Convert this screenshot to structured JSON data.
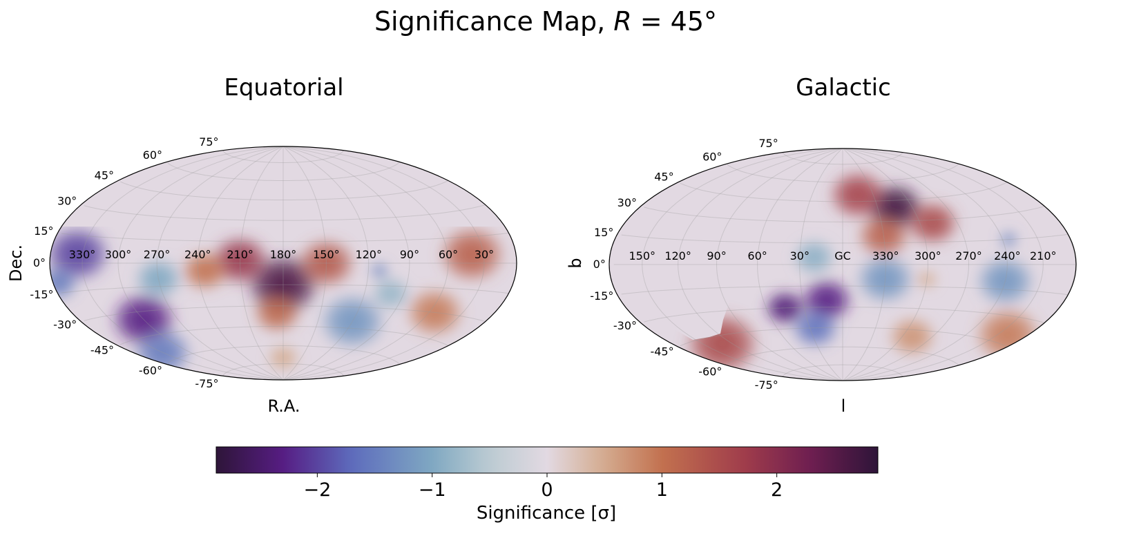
{
  "title_prefix": "Significance Map, ",
  "title_var": "R",
  "title_suffix": " = 45°",
  "chart_data": {
    "type": "heatmap",
    "projection": "hammer",
    "colormap": "twilight_shifted",
    "colorbar": {
      "label": "Significance [σ]",
      "range": [
        -2.88,
        2.88
      ],
      "ticks": [
        -2,
        -1,
        0,
        1,
        2
      ],
      "tick_labels": [
        "−2",
        "−1",
        "0",
        "1",
        "2"
      ],
      "stops": [
        {
          "v": -2.88,
          "c": "#2e1539"
        },
        {
          "v": -2.3,
          "c": "#561d83"
        },
        {
          "v": -1.7,
          "c": "#5d6cbd"
        },
        {
          "v": -1.0,
          "c": "#7fa8c2"
        },
        {
          "v": -0.5,
          "c": "#bccbd2"
        },
        {
          "v": 0,
          "c": "#e2d9e2"
        },
        {
          "v": 0.5,
          "c": "#d4ab8f"
        },
        {
          "v": 1.0,
          "c": "#c2714f"
        },
        {
          "v": 1.7,
          "c": "#a13d4b"
        },
        {
          "v": 2.3,
          "c": "#6d1e50"
        },
        {
          "v": 2.88,
          "c": "#2e1539"
        }
      ]
    },
    "panels": [
      {
        "title": "Equatorial",
        "xlabel": "R.A.",
        "ylabel": "Dec.",
        "center_lon": 180,
        "lon_ticks": [
          330,
          300,
          270,
          240,
          210,
          180,
          150,
          120,
          90,
          60,
          30
        ],
        "lon_tick_labels": [
          "330°",
          "300°",
          "270°",
          "240°",
          "210°",
          "180°",
          "150°",
          "120°",
          "90°",
          "60°",
          "30°"
        ],
        "lat_ticks": [
          75,
          60,
          45,
          30,
          15,
          0,
          -15,
          -30,
          -45,
          -60,
          -75
        ],
        "lat_tick_labels": [
          "75°",
          "60°",
          "45°",
          "30°",
          "15°",
          "0°",
          "-15°",
          "-30°",
          "-45°",
          "-60°",
          "-75°"
        ],
        "masked": "Dec > ~20° (no coverage)",
        "hotspots": [
          {
            "lon": 180,
            "lat": -15,
            "sigma": 2.6,
            "r": 28
          },
          {
            "lon": 210,
            "lat": 2,
            "sigma": 1.8,
            "r": 22
          },
          {
            "lon": 150,
            "lat": 0,
            "sigma": 1.3,
            "r": 22
          },
          {
            "lon": 235,
            "lat": -5,
            "sigma": 1.0,
            "r": 18
          },
          {
            "lon": 185,
            "lat": -35,
            "sigma": 1.1,
            "r": 18
          },
          {
            "lon": 40,
            "lat": 5,
            "sigma": 1.2,
            "r": 25
          },
          {
            "lon": 55,
            "lat": -30,
            "sigma": 0.9,
            "r": 22
          },
          {
            "lon": 180,
            "lat": -70,
            "sigma": 0.5,
            "r": 12
          },
          {
            "lon": 335,
            "lat": 5,
            "sigma": -2.0,
            "r": 25
          },
          {
            "lon": 300,
            "lat": -35,
            "sigma": -2.3,
            "r": 25
          },
          {
            "lon": 330,
            "lat": -55,
            "sigma": -1.5,
            "r": 22
          },
          {
            "lon": 270,
            "lat": -10,
            "sigma": -1.0,
            "r": 18
          },
          {
            "lon": 120,
            "lat": -40,
            "sigma": -1.2,
            "r": 25
          },
          {
            "lon": 112,
            "lat": -5,
            "sigma": -1.4,
            "r": 7
          },
          {
            "lon": 100,
            "lat": -20,
            "sigma": -0.8,
            "r": 15
          },
          {
            "lon": 355,
            "lat": -10,
            "sigma": -1.5,
            "r": 15
          }
        ]
      },
      {
        "title": "Galactic",
        "xlabel": "l",
        "ylabel": "b",
        "center_lon": 0,
        "lon_ticks": [
          150,
          120,
          90,
          60,
          30,
          0,
          330,
          300,
          270,
          240,
          210
        ],
        "lon_tick_labels": [
          "150°",
          "120°",
          "90°",
          "60°",
          "30°",
          "GC",
          "330°",
          "300°",
          "270°",
          "240°",
          "210°"
        ],
        "lat_ticks": [
          75,
          60,
          45,
          30,
          15,
          0,
          -15,
          -30,
          -45,
          -60,
          -75
        ],
        "lat_tick_labels": [
          "75°",
          "60°",
          "45°",
          "30°",
          "15°",
          "0°",
          "-15°",
          "-30°",
          "-45°",
          "-60°",
          "-75°"
        ],
        "masked": "Dec > ~20° (no coverage)",
        "hotspots": [
          {
            "lon": 315,
            "lat": 40,
            "sigma": 2.7,
            "r": 22
          },
          {
            "lon": 345,
            "lat": 50,
            "sigma": 1.6,
            "r": 22
          },
          {
            "lon": 290,
            "lat": 28,
            "sigma": 1.5,
            "r": 20
          },
          {
            "lon": 330,
            "lat": 20,
            "sigma": 1.2,
            "r": 20
          },
          {
            "lon": 12,
            "lat": -25,
            "sigma": -2.3,
            "r": 20
          },
          {
            "lon": 45,
            "lat": -30,
            "sigma": -2.4,
            "r": 16
          },
          {
            "lon": 25,
            "lat": -45,
            "sigma": -1.6,
            "r": 18
          },
          {
            "lon": 330,
            "lat": -10,
            "sigma": -1.2,
            "r": 22
          },
          {
            "lon": 240,
            "lat": -10,
            "sigma": -1.2,
            "r": 22
          },
          {
            "lon": 235,
            "lat": 15,
            "sigma": -1.4,
            "r": 7
          },
          {
            "lon": 20,
            "lat": 5,
            "sigma": -0.9,
            "r": 16
          },
          {
            "lon": 130,
            "lat": -50,
            "sigma": 1.5,
            "r": 28
          },
          {
            "lon": 200,
            "lat": -40,
            "sigma": 0.9,
            "r": 25
          },
          {
            "lon": 290,
            "lat": -50,
            "sigma": 0.7,
            "r": 18
          },
          {
            "lon": 300,
            "lat": -10,
            "sigma": 0.5,
            "r": 8
          }
        ]
      }
    ]
  }
}
